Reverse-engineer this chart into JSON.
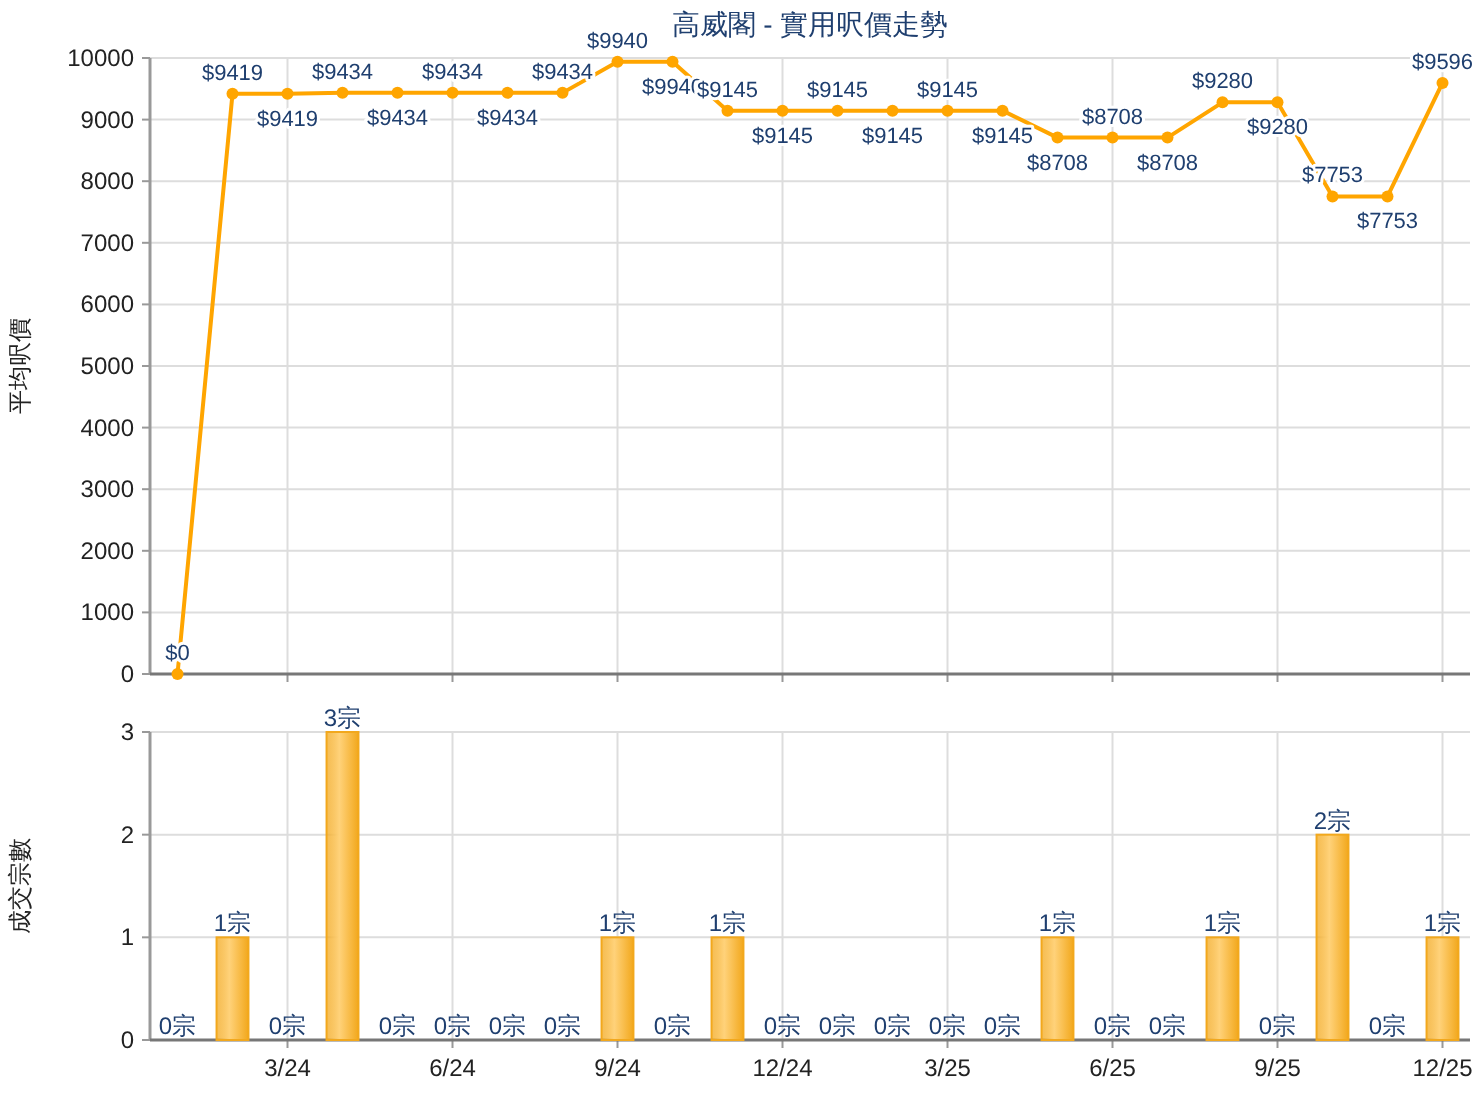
{
  "chart_data": [
    {
      "type": "line",
      "title": "高威閣 - 實用呎價走勢",
      "ylabel": "平均呎價",
      "categories": [
        null,
        null,
        null,
        null,
        null,
        null,
        null,
        null,
        null,
        null,
        null,
        null,
        null,
        null,
        null,
        null,
        null,
        null,
        null,
        null,
        null,
        null,
        null,
        null
      ],
      "tick_labels": "y",
      "ylim": [
        0,
        10000
      ],
      "yticks": [
        0,
        1000,
        2000,
        3000,
        4000,
        5000,
        6000,
        7000,
        8000,
        9000,
        10000
      ],
      "grid": true,
      "marker": "circle",
      "series": [
        {
          "color": "#ffa500",
          "line_style": "solid",
          "values": [
            0,
            9419,
            9419,
            9434,
            9434,
            9434,
            9434,
            9434,
            9940,
            9940,
            9145,
            9145,
            9145,
            9145,
            9145,
            9145,
            8708,
            8708,
            8708,
            9280,
            9280,
            7753,
            7753,
            9596
          ],
          "value_labels": [
            "$0",
            "$9419",
            "$9419",
            "$9434",
            "$9434",
            "$9434",
            "$9434",
            "$9434",
            "$9940",
            "$9940",
            "$9145",
            "$9145",
            "$9145",
            "$9145",
            "$9145",
            "$9145",
            "$8708",
            "$8708",
            "$8708",
            "$9280",
            "$9280",
            "$7753",
            "$7753",
            "$9596"
          ]
        }
      ]
    },
    {
      "type": "bar",
      "ylabel": "成交宗數",
      "categories": [
        null,
        null,
        "3/24",
        null,
        null,
        "6/24",
        null,
        null,
        "9/24",
        null,
        null,
        "12/24",
        null,
        null,
        "3/25",
        null,
        null,
        "6/25",
        null,
        null,
        "9/25",
        null,
        null,
        "12/25"
      ],
      "ylim": [
        0,
        3
      ],
      "yticks": [
        0,
        1,
        2,
        3
      ],
      "grid": true,
      "color": "#f2a81d",
      "values": [
        0,
        1,
        0,
        3,
        0,
        0,
        0,
        0,
        1,
        0,
        1,
        0,
        0,
        0,
        0,
        0,
        1,
        0,
        0,
        1,
        0,
        2,
        0,
        1
      ],
      "value_labels": [
        "0宗",
        "1宗",
        "0宗",
        "3宗",
        "0宗",
        "0宗",
        "0宗",
        "0宗",
        "1宗",
        "0宗",
        "1宗",
        "0宗",
        "0宗",
        "0宗",
        "0宗",
        "0宗",
        "1宗",
        "0宗",
        "0宗",
        "1宗",
        "0宗",
        "2宗",
        "0宗",
        "1宗"
      ]
    }
  ]
}
